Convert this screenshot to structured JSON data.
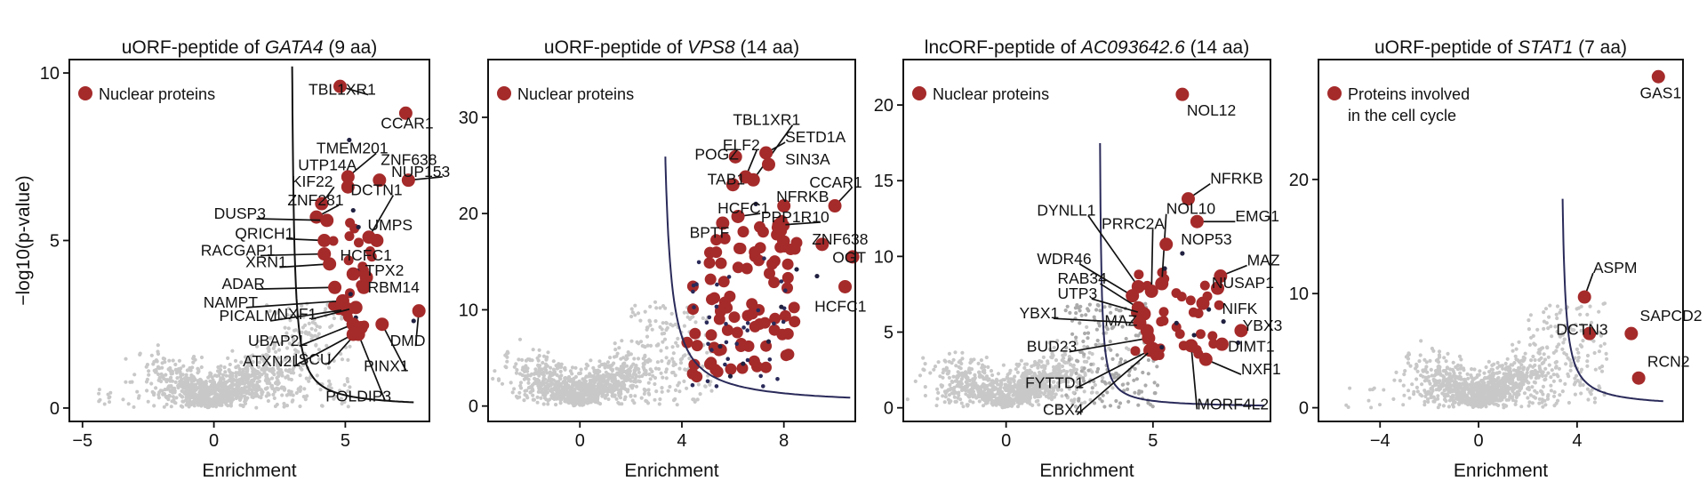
{
  "chart_data": [
    {
      "type": "scatter",
      "title": {
        "prefix": "uORF-peptide of ",
        "gene": "GATA4",
        "suffix": " (9 aa)"
      },
      "xlabel": "Enrichment",
      "ylabel": "−log10(p-value)",
      "xlim": [
        -5.5,
        8.2
      ],
      "ylim": [
        -0.4,
        10.4
      ],
      "xticks": [
        -5,
        0,
        5
      ],
      "yticks": [
        0,
        5,
        10
      ],
      "legend": {
        "label": "Nuclear proteins",
        "color": "#a52a2a"
      },
      "threshold_curve": {
        "c": 0.8,
        "x0": 2.9,
        "x_end": 7.6
      },
      "highlighted": [
        {
          "label": "TBL1XR1",
          "x": 4.8,
          "y": 9.6,
          "lx": 3.6,
          "ly": 9.35
        },
        {
          "label": "CCAR1",
          "x": 7.3,
          "y": 8.8,
          "lx": 6.35,
          "ly": 8.35
        },
        {
          "label": "TMEM201",
          "x": 5.1,
          "y": 6.9,
          "lx": 3.9,
          "ly": 7.6
        },
        {
          "label": "ZNF638",
          "x": 6.3,
          "y": 6.8,
          "lx": 6.35,
          "ly": 7.25
        },
        {
          "label": "UTP14A",
          "x": 5.1,
          "y": 6.6,
          "lx": 3.2,
          "ly": 7.1
        },
        {
          "label": "NUP153",
          "x": 7.4,
          "y": 6.8,
          "lx": 6.75,
          "ly": 6.9
        },
        {
          "label": "KIF22",
          "x": 4.1,
          "y": 6.1,
          "lx": 2.95,
          "ly": 6.6
        },
        {
          "label": "ZNF281",
          "x": 3.9,
          "y": 5.7,
          "lx": 2.8,
          "ly": 6.05
        },
        {
          "label": "DCTN1",
          "x": 5.9,
          "y": 5.1,
          "lx": 5.2,
          "ly": 6.35
        },
        {
          "label": "DUSP3",
          "x": 4.3,
          "y": 5.6,
          "lx": 0.0,
          "ly": 5.65
        },
        {
          "label": "UMPS",
          "x": 6.2,
          "y": 5.0,
          "lx": 5.85,
          "ly": 5.3
        },
        {
          "label": "QRICH1",
          "x": 4.2,
          "y": 5.0,
          "lx": 0.8,
          "ly": 5.05
        },
        {
          "label": "HCFC1",
          "x": 5.3,
          "y": 4.0,
          "lx": 4.8,
          "ly": 4.4
        },
        {
          "label": "RACGAP1",
          "x": 4.2,
          "y": 4.6,
          "lx": -0.5,
          "ly": 4.55
        },
        {
          "label": "XRN1",
          "x": 4.4,
          "y": 4.3,
          "lx": 1.2,
          "ly": 4.2
        },
        {
          "label": "TPX2",
          "x": 5.8,
          "y": 3.9,
          "lx": 5.75,
          "ly": 3.95
        },
        {
          "label": "RBM14",
          "x": 5.7,
          "y": 3.6,
          "lx": 5.85,
          "ly": 3.45
        },
        {
          "label": "ADAR",
          "x": 4.6,
          "y": 3.6,
          "lx": 0.3,
          "ly": 3.55
        },
        {
          "label": "NAMPT",
          "x": 4.9,
          "y": 3.2,
          "lx": -0.4,
          "ly": 3.0
        },
        {
          "label": "PICALM",
          "x": 5.1,
          "y": 2.95,
          "lx": 0.2,
          "ly": 2.6
        },
        {
          "label": "NXF1",
          "x": 5.4,
          "y": 3.0,
          "lx": 2.4,
          "ly": 2.65
        },
        {
          "label": "DMD",
          "x": 7.8,
          "y": 2.9,
          "lx": 6.7,
          "ly": 1.85
        },
        {
          "label": "UBAP2L",
          "x": 5.3,
          "y": 2.5,
          "lx": 1.3,
          "ly": 1.85
        },
        {
          "label": "ISCU",
          "x": 5.6,
          "y": 2.4,
          "lx": 3.05,
          "ly": 1.3
        },
        {
          "label": "ATXN2L",
          "x": 5.3,
          "y": 2.2,
          "lx": 1.1,
          "ly": 1.25
        },
        {
          "label": "PINX1",
          "x": 6.4,
          "y": 2.5,
          "lx": 5.7,
          "ly": 1.1
        },
        {
          "label": "POLDIP3",
          "x": 5.5,
          "y": 2.2,
          "lx": 4.25,
          "ly": 0.2
        }
      ],
      "small_dark_points": [
        [
          5.15,
          8.0
        ],
        [
          5.3,
          5.9
        ],
        [
          5.5,
          5.4
        ],
        [
          5.45,
          4.1
        ],
        [
          5.2,
          3.4
        ],
        [
          7.6,
          2.6
        ],
        [
          5.4,
          2.7
        ]
      ]
    },
    {
      "type": "scatter",
      "title": {
        "prefix": "uORF-peptide of ",
        "gene": "VPS8",
        "suffix": " (14 aa)"
      },
      "xlabel": "Enrichment",
      "ylabel": "",
      "xlim": [
        -3.6,
        10.8
      ],
      "ylim": [
        -1.6,
        36
      ],
      "xticks": [
        0,
        4,
        8
      ],
      "yticks": [
        0,
        10,
        20,
        30
      ],
      "legend": {
        "label": "Nuclear proteins",
        "color": "#a52a2a"
      },
      "threshold_curve": {
        "c": 6.5,
        "x0": 3.1,
        "x_end": 10.6
      },
      "highlighted": [
        {
          "label": "TBL1XR1",
          "x": 6.8,
          "y": 23.5,
          "lx": 6.0,
          "ly": 29.2
        },
        {
          "label": "ELF2",
          "x": 6.5,
          "y": 23.8,
          "lx": 5.6,
          "ly": 26.6
        },
        {
          "label": "SETD1A",
          "x": 7.3,
          "y": 26.3,
          "lx": 8.05,
          "ly": 27.4
        },
        {
          "label": "POGZ",
          "x": 6.1,
          "y": 25.9,
          "lx": 4.5,
          "ly": 25.6
        },
        {
          "label": "SIN3A",
          "x": 7.4,
          "y": 25.1,
          "lx": 8.05,
          "ly": 25.1
        },
        {
          "label": "TAB1",
          "x": 6.0,
          "y": 23.0,
          "lx": 5.0,
          "ly": 23.0
        },
        {
          "label": "CCAR1",
          "x": 10.0,
          "y": 20.8,
          "lx": 9.0,
          "ly": 22.7
        },
        {
          "label": "NFRKB",
          "x": 8.0,
          "y": 20.8,
          "lx": 7.7,
          "ly": 21.2
        },
        {
          "label": "HCFC1",
          "x": 6.2,
          "y": 19.7,
          "lx": 5.4,
          "ly": 20.0
        },
        {
          "label": "PPP1R10",
          "x": 7.8,
          "y": 18.8,
          "lx": 7.1,
          "ly": 19.1
        },
        {
          "label": "BPTF",
          "x": 5.6,
          "y": 19.0,
          "lx": 4.3,
          "ly": 17.5
        },
        {
          "label": "ZNF638",
          "x": 9.5,
          "y": 16.8,
          "lx": 9.1,
          "ly": 16.8
        },
        {
          "label": "OGT",
          "x": 10.7,
          "y": 15.5,
          "lx": 9.9,
          "ly": 14.9
        },
        {
          "label": "HCFC1",
          "x": 10.4,
          "y": 12.4,
          "lx": 9.2,
          "ly": 9.8
        }
      ],
      "small_dark_points": [
        [
          6.9,
          21.0
        ],
        [
          8.5,
          14.2
        ],
        [
          9.3,
          13.5
        ],
        [
          7.9,
          10.3
        ],
        [
          7.4,
          6.7
        ],
        [
          5.9,
          3.1
        ],
        [
          6.4,
          4.4
        ],
        [
          5.5,
          6.2
        ]
      ]
    },
    {
      "type": "scatter",
      "title": {
        "prefix": "lncORF-peptide of ",
        "gene": "AC093642.6",
        "suffix": " (14 aa)"
      },
      "xlabel": "Enrichment",
      "ylabel": "",
      "xlim": [
        -3.5,
        9.0
      ],
      "ylim": [
        -0.9,
        23
      ],
      "xticks": [
        0,
        5
      ],
      "yticks": [
        0,
        5,
        10,
        15,
        20
      ],
      "legend": {
        "label": "Nuclear proteins",
        "color": "#a52a2a"
      },
      "threshold_curve": {
        "c": 0.85,
        "x0": 3.15,
        "x_end": 8.8
      },
      "highlighted": [
        {
          "label": "NOL12",
          "x": 6.0,
          "y": 20.7,
          "lx": 6.15,
          "ly": 19.3
        },
        {
          "label": "NFRKB",
          "x": 6.2,
          "y": 13.8,
          "lx": 6.95,
          "ly": 14.8
        },
        {
          "label": "DYNLL1",
          "x": 4.5,
          "y": 8.0,
          "lx": 1.05,
          "ly": 12.7
        },
        {
          "label": "EMG1",
          "x": 6.5,
          "y": 12.3,
          "lx": 7.8,
          "ly": 12.3
        },
        {
          "label": "NOL10",
          "x": 5.3,
          "y": 8.2,
          "lx": 5.45,
          "ly": 12.8
        },
        {
          "label": "PRRC2A",
          "x": 4.95,
          "y": 7.7,
          "lx": 3.25,
          "ly": 11.8
        },
        {
          "label": "NOP53",
          "x": 5.45,
          "y": 10.8,
          "lx": 5.95,
          "ly": 10.8
        },
        {
          "label": "MAZ",
          "x": 7.3,
          "y": 8.7,
          "lx": 8.2,
          "ly": 9.4
        },
        {
          "label": "WDR46",
          "x": 4.3,
          "y": 7.4,
          "lx": 1.05,
          "ly": 9.5
        },
        {
          "label": "RAB34",
          "x": 4.5,
          "y": 6.6,
          "lx": 1.75,
          "ly": 8.2
        },
        {
          "label": "NUSAP1",
          "x": 7.2,
          "y": 7.9,
          "lx": 7.0,
          "ly": 7.9
        },
        {
          "label": "UTP3",
          "x": 4.7,
          "y": 6.2,
          "lx": 1.75,
          "ly": 7.2
        },
        {
          "label": "NIFK",
          "x": 6.7,
          "y": 6.9,
          "lx": 7.35,
          "ly": 6.2
        },
        {
          "label": "YBX1",
          "x": 4.55,
          "y": 5.6,
          "lx": 0.45,
          "ly": 5.9
        },
        {
          "label": "MAZ",
          "x": 4.8,
          "y": 5.1,
          "lx": 3.35,
          "ly": 5.4
        },
        {
          "label": "YBX3",
          "x": 8.0,
          "y": 5.1,
          "lx": 8.05,
          "ly": 5.1
        },
        {
          "label": "BUD23",
          "x": 4.85,
          "y": 4.6,
          "lx": 0.7,
          "ly": 3.7
        },
        {
          "label": "DIMT1",
          "x": 7.35,
          "y": 4.2,
          "lx": 7.55,
          "ly": 3.7
        },
        {
          "label": "NXF1",
          "x": 6.8,
          "y": 3.2,
          "lx": 8.0,
          "ly": 2.2
        },
        {
          "label": "FYTTD1",
          "x": 4.9,
          "y": 3.8,
          "lx": 0.65,
          "ly": 1.3
        },
        {
          "label": "MORF4L2",
          "x": 6.3,
          "y": 4.1,
          "lx": 6.5,
          "ly": -0.1
        },
        {
          "label": "CBX4",
          "x": 5.0,
          "y": 3.9,
          "lx": 1.25,
          "ly": -0.45
        }
      ],
      "small_dark_points": [
        [
          5.4,
          9.2
        ],
        [
          6.0,
          10.2
        ],
        [
          6.9,
          6.5
        ],
        [
          5.8,
          5.6
        ],
        [
          6.4,
          4.8
        ],
        [
          7.9,
          4.3
        ],
        [
          5.3,
          4.0
        ],
        [
          7.4,
          5.7
        ]
      ]
    },
    {
      "type": "scatter",
      "title": {
        "prefix": "uORF-peptide of ",
        "gene": "STAT1",
        "suffix": " (7 aa)"
      },
      "xlabel": "Enrichment",
      "ylabel": "",
      "xlim": [
        -6.5,
        8.3
      ],
      "ylim": [
        -1.2,
        30.5
      ],
      "xticks": [
        -4,
        0,
        4
      ],
      "yticks": [
        0,
        10,
        20
      ],
      "legend": {
        "label": "Proteins involved",
        "label_line2": "in the cell cycle",
        "color": "#a52a2a"
      },
      "threshold_curve": {
        "c": 2.4,
        "x0": 3.28,
        "x_end": 7.5
      },
      "highlighted": [
        {
          "label": "GAS1",
          "x": 7.3,
          "y": 29.0,
          "lx": 6.55,
          "ly": 27.1
        },
        {
          "label": "ASPM",
          "x": 4.3,
          "y": 9.7,
          "lx": 4.65,
          "ly": 11.8
        },
        {
          "label": "SAPCD2",
          "x": 6.2,
          "y": 6.5,
          "lx": 6.55,
          "ly": 7.6
        },
        {
          "label": "DCTN3",
          "x": 4.5,
          "y": 6.5,
          "lx": 3.15,
          "ly": 6.4
        },
        {
          "label": "RCN2",
          "x": 6.5,
          "y": 2.6,
          "lx": 6.85,
          "ly": 3.6
        }
      ],
      "small_dark_points": [
        [
          6.4,
          2.6
        ]
      ]
    }
  ]
}
